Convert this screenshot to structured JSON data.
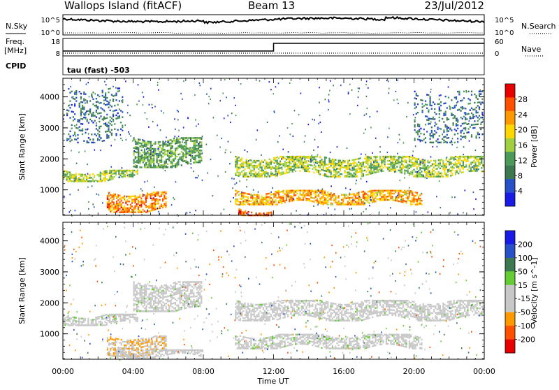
{
  "header": {
    "title": "Wallops Island (fitACF)",
    "beam": "Beam 13",
    "date": "23/Jul/2012"
  },
  "top_panels": {
    "nsky_label": "N.Sky",
    "nsearch_label": "N.Search",
    "freq_label": "Freq.",
    "freq_unit": "[MHz]",
    "nave_label": "Nave",
    "cpid_label": "CPID",
    "cpid_text": "tau (fast) -503",
    "noise_left_ticks": [
      "10^5",
      "10^0"
    ],
    "noise_right_ticks": [
      "10^5",
      "10^0"
    ],
    "freq_left_ticks": [
      "18",
      "8"
    ],
    "freq_right_ticks": [
      "60",
      "0"
    ]
  },
  "colorbars": {
    "power": {
      "label": "Power [dB]",
      "ticks": [
        "4",
        "8",
        "12",
        "16",
        "20",
        "24",
        "28"
      ]
    },
    "velocity": {
      "label": "Velocity [m s^-1]",
      "ticks": [
        "200",
        "100",
        "50",
        "15",
        "-15",
        "-50",
        "-100",
        "-200"
      ]
    }
  },
  "chart_data": [
    {
      "type": "heatmap",
      "title": "",
      "xlabel": "Time UT",
      "ylabel": "Slant Range [km]",
      "xlim": [
        "00:00",
        "24:00"
      ],
      "ylim": [
        180,
        4600
      ],
      "x_ticks": [
        "00:00",
        "04:00",
        "08:00",
        "12:00",
        "16:00",
        "20:00",
        "00:00"
      ],
      "y_ticks": [
        1000,
        2000,
        3000,
        4000
      ],
      "colorbar": "Power [dB]",
      "color_range": [
        0,
        32
      ],
      "echo_bands": [
        {
          "t_start": 0.0,
          "t_end": 4.3,
          "range_start": 1250,
          "range_end": 1650,
          "value": 16
        },
        {
          "t_start": 2.5,
          "t_end": 6.0,
          "range_start": 250,
          "range_end": 950,
          "value": 24
        },
        {
          "t_start": 4.0,
          "t_end": 8.0,
          "range_start": 1700,
          "range_end": 2700,
          "value": 12
        },
        {
          "t_start": 9.8,
          "t_end": 20.5,
          "range_start": 500,
          "range_end": 1000,
          "value": 22
        },
        {
          "t_start": 9.8,
          "t_end": 24.0,
          "range_start": 1400,
          "range_end": 2100,
          "value": 16
        },
        {
          "t_start": 10.0,
          "t_end": 12.0,
          "range_start": 150,
          "range_end": 400,
          "value": 26
        },
        {
          "t_start": 0.2,
          "t_end": 3.5,
          "range_start": 2500,
          "range_end": 4300,
          "value": 8
        },
        {
          "t_start": 20.0,
          "t_end": 24.0,
          "range_start": 2500,
          "range_end": 4200,
          "value": 8
        }
      ]
    },
    {
      "type": "heatmap",
      "title": "",
      "xlabel": "Time UT",
      "ylabel": "Slant Range [km]",
      "xlim": [
        "00:00",
        "24:00"
      ],
      "ylim": [
        180,
        4600
      ],
      "x_ticks": [
        "00:00",
        "04:00",
        "08:00",
        "12:00",
        "16:00",
        "20:00",
        "00:00"
      ],
      "y_ticks": [
        1000,
        2000,
        3000,
        4000
      ],
      "colorbar": "Velocity [m s^-1]",
      "color_range": [
        -200,
        200
      ],
      "echo_bands": [
        {
          "t_start": 0.0,
          "t_end": 4.3,
          "range_start": 1250,
          "range_end": 1650,
          "value": 0
        },
        {
          "t_start": 2.5,
          "t_end": 6.0,
          "range_start": 250,
          "range_end": 950,
          "value": -60
        },
        {
          "t_start": 4.0,
          "t_end": 8.0,
          "range_start": 1700,
          "range_end": 2700,
          "value": 0
        },
        {
          "t_start": 9.8,
          "t_end": 20.5,
          "range_start": 500,
          "range_end": 1000,
          "value": 0
        },
        {
          "t_start": 9.8,
          "t_end": 24.0,
          "range_start": 1400,
          "range_end": 2100,
          "value": 0
        },
        {
          "t_start": 3.0,
          "t_end": 8.0,
          "range_start": 180,
          "range_end": 500,
          "value": -40
        }
      ]
    }
  ]
}
